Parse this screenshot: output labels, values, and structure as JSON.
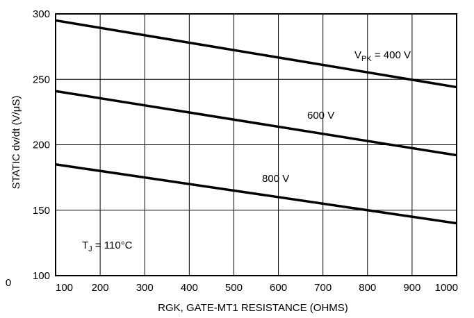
{
  "chart_data": {
    "type": "line",
    "xlabel": "RGK, GATE-MT1 RESISTANCE (OHMS)",
    "ylabel": "STATIC dv/dt (V/μS)",
    "xlim": [
      100,
      1000
    ],
    "ylim": [
      100,
      300
    ],
    "x_ticks": [
      "100",
      "200",
      "300",
      "400",
      "500",
      "600",
      "700",
      "800",
      "900",
      "1000"
    ],
    "y_ticks": [
      "100",
      "150",
      "200",
      "250",
      "300"
    ],
    "stray_tick_label": "0",
    "grid": true,
    "series": [
      {
        "name": "400 V",
        "x": [
          100,
          1000
        ],
        "y": [
          295,
          244
        ]
      },
      {
        "name": "600 V",
        "x": [
          100,
          1000
        ],
        "y": [
          241,
          192
        ]
      },
      {
        "name": "800 V",
        "x": [
          100,
          1000
        ],
        "y": [
          185,
          140
        ]
      }
    ],
    "annotations": {
      "vpk_prefix": "V",
      "vpk_sub": "PK",
      "vpk_value": " = 400 V",
      "label_600": "600 V",
      "label_800": "800 V",
      "tj_prefix": "T",
      "tj_sub": "J",
      "tj_value": " = 110°C"
    }
  }
}
